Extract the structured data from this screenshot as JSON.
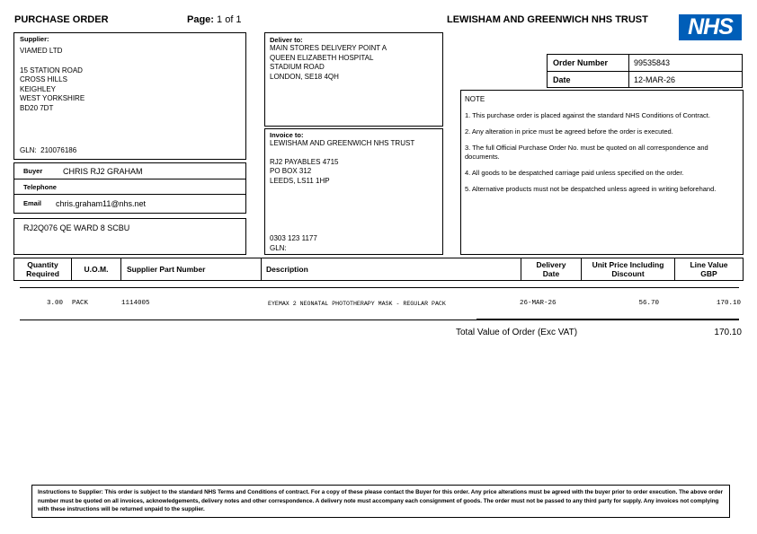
{
  "header": {
    "title": "PURCHASE ORDER",
    "page_label": "Page:",
    "page_value": "1 of 1",
    "trust": "LEWISHAM AND GREENWICH NHS TRUST",
    "logo": "NHS",
    "logo_color": "#005EB8"
  },
  "supplier": {
    "label": "Supplier:",
    "name": "VIAMED LTD",
    "address": [
      "15 STATION ROAD",
      "CROSS HILLS",
      "KEIGHLEY",
      "WEST YORKSHIRE",
      "BD20 7DT"
    ],
    "gln_label": "GLN:",
    "gln": "210076186"
  },
  "buyer": {
    "buyer_label": "Buyer",
    "buyer": "CHRIS RJ2 GRAHAM",
    "telephone_label": "Telephone",
    "telephone": "",
    "email_label": "Email",
    "email": "chris.graham11@nhs.net"
  },
  "ward": "RJ2Q076 QE WARD 8 SCBU",
  "deliver": {
    "label": "Deliver to:",
    "lines": [
      "MAIN STORES DELIVERY POINT A",
      "QUEEN ELIZABETH HOSPITAL",
      "STADIUM ROAD",
      "LONDON, SE18 4QH"
    ]
  },
  "invoice": {
    "label": "Invoice to:",
    "name": "LEWISHAM AND GREENWICH NHS TRUST",
    "lines": [
      "RJ2 PAYABLES 4715",
      "PO BOX 312",
      "LEEDS, LS11 1HP"
    ],
    "phone": "0303 123 1177",
    "gln_label": "GLN:"
  },
  "order": {
    "number_label": "Order Number",
    "number": "99535843",
    "date_label": "Date",
    "date": "12-MAR-26"
  },
  "note": {
    "title": "NOTE",
    "items": [
      "1. This purchase order is placed against the standard NHS Conditions of Contract.",
      "2. Any alteration in price must be agreed before the order is executed.",
      "3. The full Official Purchase Order No. must be quoted on all correspondence and documents.",
      "4. All goods to be despatched carriage paid unless specified on the order.",
      "5. Alternative products must not be despatched unless agreed in writing beforehand."
    ]
  },
  "table": {
    "columns": [
      "Quantity Required",
      "U.O.M.",
      "Supplier Part Number",
      "Description",
      "Delivery Date",
      "Unit Price Including Discount",
      "Line Value GBP"
    ],
    "rows": [
      {
        "qty": "3.00",
        "uom": "PACK",
        "part": "1114005",
        "description": "EYEMAX 2 NEONATAL PHOTOTHERAPY MASK - REGULAR PACK",
        "delivery": "26-MAR-26",
        "unit_price": "56.70",
        "line_value": "170.10"
      }
    ]
  },
  "total": {
    "label": "Total Value of Order (Exc VAT)",
    "value": "170.10"
  },
  "footer": "Instructions to Supplier: This order is subject to the standard NHS Terms and Conditions of contract. For a copy of these please contact the Buyer for this order. Any price alterations must be agreed with the buyer prior to order execution. The above order number must be quoted on all invoices, acknowledgements, delivery notes and other correspondence. A delivery note must accompany each consignment of goods. The order must not be passed to any third party for supply. Any invoices not complying with these instructions will be returned unpaid to the supplier."
}
